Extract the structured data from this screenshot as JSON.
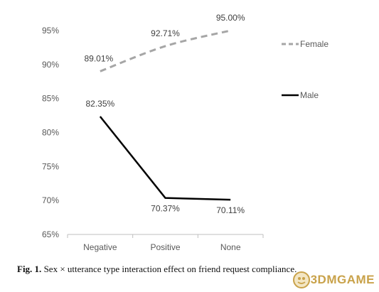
{
  "chart_data": {
    "type": "line",
    "categories": [
      "Negative",
      "Positive",
      "None"
    ],
    "series": [
      {
        "name": "Female",
        "values": [
          89.01,
          92.71,
          95.0
        ],
        "labels": [
          "89.01%",
          "92.71%",
          "95.00%"
        ],
        "color": "#a6a6a6",
        "style": "dashed",
        "smooth": true
      },
      {
        "name": "Male",
        "values": [
          82.35,
          70.37,
          70.11
        ],
        "labels": [
          "82.35%",
          "70.37%",
          "70.11%"
        ],
        "color": "#000000",
        "style": "solid",
        "smooth": false
      }
    ],
    "ylim": [
      65,
      95
    ],
    "yticks": [
      "95%",
      "90%",
      "85%",
      "80%",
      "75%",
      "70%",
      "65%"
    ],
    "ytick_values": [
      95,
      90,
      85,
      80,
      75,
      70,
      65
    ],
    "grid": false,
    "legend_position": "right"
  },
  "caption": {
    "fig_label": "Fig. 1.",
    "text": "Sex × utterance type interaction effect on friend request compliance."
  },
  "watermark": {
    "text": "3DMGAME"
  }
}
